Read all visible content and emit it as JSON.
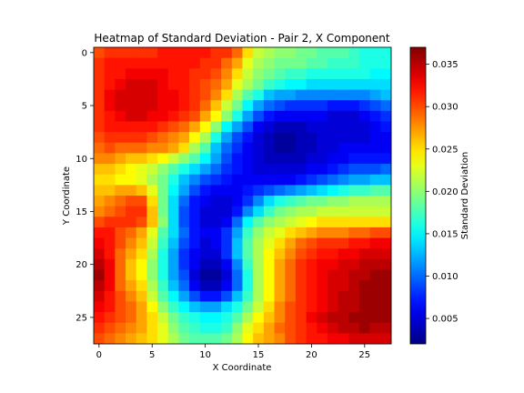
{
  "chart_data": {
    "type": "heatmap",
    "title": "Heatmap of Standard Deviation - Pair 2, X Component",
    "xlabel": "X Coordinate",
    "ylabel": "Y Coordinate",
    "colorbar_label": "Standard Deviation",
    "colormap": "jet",
    "grid": false,
    "y_axis_inverted": true,
    "x_ticks": [
      0,
      5,
      10,
      15,
      20,
      25
    ],
    "y_ticks": [
      0,
      5,
      10,
      15,
      20,
      25
    ],
    "colorbar_ticks": [
      0.005,
      0.01,
      0.015,
      0.02,
      0.025,
      0.03,
      0.035
    ],
    "colorbar_tick_labels": [
      "0.005",
      "0.010",
      "0.015",
      "0.020",
      "0.025",
      "0.030",
      "0.035"
    ],
    "value_range": [
      0.002,
      0.037
    ],
    "rows": 28,
    "cols": 28,
    "values": [
      [
        0.03,
        0.031,
        0.031,
        0.031,
        0.031,
        0.031,
        0.032,
        0.032,
        0.032,
        0.032,
        0.032,
        0.031,
        0.031,
        0.029,
        0.025,
        0.022,
        0.021,
        0.02,
        0.02,
        0.019,
        0.019,
        0.018,
        0.018,
        0.018,
        0.017,
        0.016,
        0.016,
        0.016
      ],
      [
        0.031,
        0.032,
        0.032,
        0.032,
        0.032,
        0.032,
        0.032,
        0.032,
        0.032,
        0.032,
        0.031,
        0.031,
        0.029,
        0.027,
        0.023,
        0.021,
        0.02,
        0.019,
        0.019,
        0.019,
        0.018,
        0.018,
        0.017,
        0.017,
        0.017,
        0.016,
        0.016,
        0.016
      ],
      [
        0.031,
        0.032,
        0.032,
        0.033,
        0.033,
        0.033,
        0.033,
        0.032,
        0.032,
        0.031,
        0.031,
        0.03,
        0.028,
        0.025,
        0.022,
        0.02,
        0.019,
        0.018,
        0.017,
        0.017,
        0.016,
        0.016,
        0.016,
        0.016,
        0.016,
        0.016,
        0.015,
        0.015
      ],
      [
        0.031,
        0.032,
        0.033,
        0.034,
        0.034,
        0.034,
        0.033,
        0.032,
        0.032,
        0.031,
        0.03,
        0.029,
        0.027,
        0.023,
        0.021,
        0.019,
        0.017,
        0.016,
        0.015,
        0.015,
        0.014,
        0.014,
        0.014,
        0.014,
        0.014,
        0.014,
        0.014,
        0.014
      ],
      [
        0.031,
        0.033,
        0.034,
        0.034,
        0.034,
        0.034,
        0.033,
        0.033,
        0.032,
        0.031,
        0.03,
        0.028,
        0.025,
        0.021,
        0.018,
        0.016,
        0.013,
        0.012,
        0.012,
        0.011,
        0.011,
        0.011,
        0.011,
        0.011,
        0.011,
        0.011,
        0.012,
        0.013
      ],
      [
        0.031,
        0.033,
        0.034,
        0.034,
        0.034,
        0.034,
        0.033,
        0.033,
        0.032,
        0.031,
        0.029,
        0.026,
        0.022,
        0.019,
        0.015,
        0.012,
        0.01,
        0.009,
        0.008,
        0.008,
        0.008,
        0.008,
        0.007,
        0.007,
        0.007,
        0.008,
        0.009,
        0.01
      ],
      [
        0.031,
        0.032,
        0.033,
        0.034,
        0.034,
        0.033,
        0.033,
        0.032,
        0.031,
        0.03,
        0.027,
        0.024,
        0.02,
        0.016,
        0.012,
        0.009,
        0.007,
        0.006,
        0.006,
        0.006,
        0.006,
        0.006,
        0.005,
        0.005,
        0.005,
        0.006,
        0.007,
        0.008
      ],
      [
        0.031,
        0.032,
        0.032,
        0.032,
        0.032,
        0.032,
        0.031,
        0.03,
        0.029,
        0.027,
        0.024,
        0.02,
        0.015,
        0.012,
        0.009,
        0.006,
        0.005,
        0.004,
        0.004,
        0.004,
        0.005,
        0.005,
        0.005,
        0.005,
        0.005,
        0.005,
        0.006,
        0.007
      ],
      [
        0.03,
        0.031,
        0.031,
        0.031,
        0.031,
        0.03,
        0.029,
        0.028,
        0.027,
        0.024,
        0.021,
        0.016,
        0.012,
        0.009,
        0.007,
        0.005,
        0.004,
        0.003,
        0.003,
        0.004,
        0.004,
        0.005,
        0.005,
        0.005,
        0.005,
        0.005,
        0.006,
        0.006
      ],
      [
        0.029,
        0.03,
        0.029,
        0.029,
        0.029,
        0.028,
        0.028,
        0.027,
        0.025,
        0.021,
        0.018,
        0.013,
        0.01,
        0.008,
        0.006,
        0.005,
        0.004,
        0.003,
        0.003,
        0.004,
        0.004,
        0.005,
        0.005,
        0.006,
        0.006,
        0.006,
        0.006,
        0.006
      ],
      [
        0.028,
        0.028,
        0.027,
        0.026,
        0.026,
        0.025,
        0.024,
        0.022,
        0.02,
        0.018,
        0.015,
        0.012,
        0.009,
        0.007,
        0.006,
        0.005,
        0.004,
        0.004,
        0.004,
        0.004,
        0.005,
        0.005,
        0.006,
        0.006,
        0.007,
        0.007,
        0.007,
        0.007
      ],
      [
        0.026,
        0.026,
        0.025,
        0.024,
        0.023,
        0.022,
        0.02,
        0.018,
        0.016,
        0.014,
        0.012,
        0.01,
        0.008,
        0.007,
        0.006,
        0.005,
        0.005,
        0.005,
        0.005,
        0.005,
        0.006,
        0.006,
        0.007,
        0.008,
        0.009,
        0.009,
        0.009,
        0.01
      ],
      [
        0.025,
        0.025,
        0.024,
        0.024,
        0.023,
        0.021,
        0.019,
        0.016,
        0.013,
        0.011,
        0.009,
        0.008,
        0.007,
        0.006,
        0.006,
        0.006,
        0.006,
        0.006,
        0.006,
        0.007,
        0.008,
        0.009,
        0.01,
        0.011,
        0.012,
        0.012,
        0.013,
        0.013
      ],
      [
        0.026,
        0.026,
        0.027,
        0.027,
        0.026,
        0.023,
        0.019,
        0.015,
        0.012,
        0.009,
        0.007,
        0.006,
        0.006,
        0.006,
        0.007,
        0.008,
        0.009,
        0.01,
        0.011,
        0.012,
        0.013,
        0.014,
        0.015,
        0.016,
        0.017,
        0.017,
        0.018,
        0.018
      ],
      [
        0.027,
        0.028,
        0.029,
        0.03,
        0.03,
        0.025,
        0.019,
        0.014,
        0.01,
        0.007,
        0.006,
        0.005,
        0.005,
        0.006,
        0.008,
        0.011,
        0.014,
        0.016,
        0.017,
        0.018,
        0.019,
        0.019,
        0.02,
        0.02,
        0.021,
        0.021,
        0.021,
        0.021
      ],
      [
        0.028,
        0.029,
        0.03,
        0.031,
        0.031,
        0.026,
        0.019,
        0.014,
        0.009,
        0.007,
        0.005,
        0.005,
        0.005,
        0.007,
        0.011,
        0.014,
        0.017,
        0.019,
        0.02,
        0.021,
        0.021,
        0.022,
        0.022,
        0.022,
        0.022,
        0.022,
        0.022,
        0.022
      ],
      [
        0.03,
        0.031,
        0.031,
        0.031,
        0.03,
        0.026,
        0.02,
        0.014,
        0.009,
        0.007,
        0.005,
        0.005,
        0.006,
        0.01,
        0.015,
        0.018,
        0.02,
        0.021,
        0.022,
        0.023,
        0.024,
        0.025,
        0.025,
        0.025,
        0.025,
        0.025,
        0.025,
        0.025
      ],
      [
        0.032,
        0.032,
        0.03,
        0.029,
        0.027,
        0.023,
        0.018,
        0.014,
        0.01,
        0.007,
        0.006,
        0.006,
        0.008,
        0.012,
        0.017,
        0.02,
        0.022,
        0.023,
        0.025,
        0.026,
        0.027,
        0.028,
        0.028,
        0.028,
        0.029,
        0.029,
        0.03,
        0.03
      ],
      [
        0.033,
        0.032,
        0.03,
        0.028,
        0.026,
        0.022,
        0.017,
        0.013,
        0.009,
        0.007,
        0.005,
        0.006,
        0.008,
        0.013,
        0.018,
        0.021,
        0.023,
        0.025,
        0.027,
        0.029,
        0.03,
        0.031,
        0.031,
        0.031,
        0.032,
        0.032,
        0.033,
        0.033
      ],
      [
        0.034,
        0.032,
        0.029,
        0.027,
        0.025,
        0.021,
        0.016,
        0.012,
        0.008,
        0.006,
        0.005,
        0.005,
        0.008,
        0.013,
        0.018,
        0.021,
        0.024,
        0.026,
        0.028,
        0.03,
        0.031,
        0.032,
        0.032,
        0.033,
        0.033,
        0.034,
        0.034,
        0.034
      ],
      [
        0.035,
        0.033,
        0.029,
        0.026,
        0.024,
        0.02,
        0.016,
        0.012,
        0.008,
        0.006,
        0.004,
        0.004,
        0.006,
        0.011,
        0.017,
        0.021,
        0.024,
        0.027,
        0.029,
        0.031,
        0.032,
        0.033,
        0.033,
        0.034,
        0.034,
        0.035,
        0.035,
        0.035
      ],
      [
        0.036,
        0.033,
        0.029,
        0.026,
        0.024,
        0.02,
        0.016,
        0.012,
        0.009,
        0.005,
        0.003,
        0.003,
        0.005,
        0.01,
        0.016,
        0.021,
        0.024,
        0.027,
        0.029,
        0.031,
        0.032,
        0.033,
        0.034,
        0.034,
        0.035,
        0.035,
        0.036,
        0.036
      ],
      [
        0.035,
        0.033,
        0.029,
        0.027,
        0.025,
        0.021,
        0.017,
        0.013,
        0.01,
        0.006,
        0.004,
        0.004,
        0.006,
        0.01,
        0.016,
        0.021,
        0.024,
        0.027,
        0.029,
        0.031,
        0.032,
        0.033,
        0.034,
        0.034,
        0.035,
        0.036,
        0.036,
        0.036
      ],
      [
        0.034,
        0.032,
        0.03,
        0.028,
        0.026,
        0.022,
        0.018,
        0.015,
        0.012,
        0.009,
        0.007,
        0.007,
        0.009,
        0.013,
        0.017,
        0.021,
        0.024,
        0.027,
        0.029,
        0.031,
        0.032,
        0.033,
        0.034,
        0.035,
        0.035,
        0.036,
        0.036,
        0.036
      ],
      [
        0.033,
        0.032,
        0.03,
        0.029,
        0.027,
        0.024,
        0.02,
        0.017,
        0.015,
        0.013,
        0.012,
        0.012,
        0.014,
        0.016,
        0.019,
        0.022,
        0.025,
        0.028,
        0.03,
        0.031,
        0.032,
        0.033,
        0.034,
        0.035,
        0.035,
        0.036,
        0.036,
        0.036
      ],
      [
        0.032,
        0.031,
        0.03,
        0.029,
        0.027,
        0.025,
        0.022,
        0.019,
        0.017,
        0.016,
        0.015,
        0.015,
        0.016,
        0.018,
        0.021,
        0.024,
        0.026,
        0.028,
        0.03,
        0.031,
        0.033,
        0.034,
        0.035,
        0.035,
        0.036,
        0.036,
        0.036,
        0.036
      ],
      [
        0.031,
        0.03,
        0.029,
        0.028,
        0.027,
        0.025,
        0.023,
        0.02,
        0.018,
        0.017,
        0.016,
        0.016,
        0.017,
        0.02,
        0.023,
        0.025,
        0.027,
        0.029,
        0.03,
        0.031,
        0.032,
        0.033,
        0.034,
        0.035,
        0.035,
        0.036,
        0.035,
        0.035
      ],
      [
        0.03,
        0.029,
        0.028,
        0.027,
        0.026,
        0.025,
        0.023,
        0.021,
        0.019,
        0.018,
        0.018,
        0.018,
        0.019,
        0.021,
        0.024,
        0.026,
        0.027,
        0.028,
        0.03,
        0.031,
        0.032,
        0.032,
        0.033,
        0.033,
        0.034,
        0.034,
        0.034,
        0.034
      ]
    ]
  }
}
